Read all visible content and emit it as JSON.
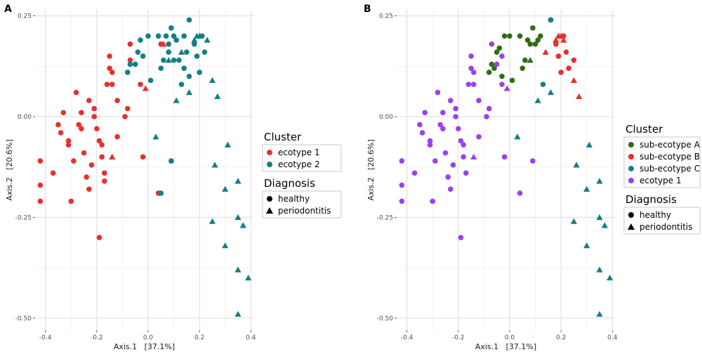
{
  "colors": {
    "ecotype1": "#e8302a",
    "ecotype2": "#128083",
    "subA": "#2f6e10",
    "subB": "#e8302a",
    "subC": "#128083",
    "purple": "#9d3ff0"
  },
  "chart_data": [
    {
      "panel": "A",
      "type": "scatter",
      "xlabel": "Axis.1   [37.1%]",
      "ylabel": "Axis.2   [20.6%]",
      "xlim": [
        -0.44,
        0.41
      ],
      "ylim": [
        -0.53,
        0.265
      ],
      "xticks": [
        -0.4,
        -0.2,
        0.0,
        0.2,
        0.4
      ],
      "xtick_labels": [
        "-0.4",
        "-0.2",
        "0.0",
        "0.2",
        "0.4"
      ],
      "yticks": [
        -0.5,
        -0.25,
        0.0,
        0.25
      ],
      "ytick_labels": [
        "-0.50",
        "-0.25",
        "0.00",
        "0.25"
      ],
      "legend": {
        "cluster_title": "Cluster",
        "clusters": [
          {
            "label": "ecotype 1",
            "color": "#e8302a"
          },
          {
            "label": "ecotype 2",
            "color": "#128083"
          }
        ],
        "diagnosis_title": "Diagnosis",
        "diagnoses": [
          {
            "label": "healthy",
            "shape": "circle"
          },
          {
            "label": "periodontitis",
            "shape": "triangle"
          }
        ]
      },
      "series": [
        {
          "name": "ecotype 1",
          "color": "#e8302a",
          "healthy": [
            [
              -0.42,
              -0.11
            ],
            [
              -0.42,
              -0.17
            ],
            [
              -0.42,
              -0.21
            ],
            [
              -0.37,
              -0.14
            ],
            [
              -0.35,
              -0.02
            ],
            [
              -0.34,
              -0.04
            ],
            [
              -0.33,
              0.01
            ],
            [
              -0.31,
              -0.06
            ],
            [
              -0.31,
              -0.07
            ],
            [
              -0.3,
              -0.21
            ],
            [
              -0.29,
              -0.11
            ],
            [
              -0.28,
              0.06
            ],
            [
              -0.27,
              -0.02
            ],
            [
              -0.26,
              0.01
            ],
            [
              -0.26,
              -0.03
            ],
            [
              -0.25,
              -0.09
            ],
            [
              -0.24,
              -0.15
            ],
            [
              -0.23,
              0.04
            ],
            [
              -0.23,
              -0.18
            ],
            [
              -0.22,
              -0.12
            ],
            [
              -0.21,
              0.0
            ],
            [
              -0.21,
              0.02
            ],
            [
              -0.2,
              -0.03
            ],
            [
              -0.19,
              -0.06
            ],
            [
              -0.19,
              -0.3
            ],
            [
              -0.18,
              -0.07
            ],
            [
              -0.18,
              -0.1
            ],
            [
              -0.17,
              -0.14
            ],
            [
              -0.17,
              -0.16
            ],
            [
              -0.16,
              0.08
            ],
            [
              -0.15,
              0.15
            ],
            [
              -0.15,
              0.12
            ],
            [
              -0.14,
              0.11
            ],
            [
              -0.14,
              0.08
            ],
            [
              -0.12,
              0.04
            ],
            [
              -0.12,
              -0.05
            ],
            [
              -0.09,
              0.0
            ],
            [
              -0.08,
              0.02
            ],
            [
              -0.07,
              0.18
            ],
            [
              -0.07,
              0.14
            ],
            [
              -0.03,
              0.08
            ],
            [
              -0.02,
              -0.1
            ],
            [
              0.04,
              -0.19
            ],
            [
              0.05,
              0.18
            ],
            [
              0.09,
              -0.11
            ]
          ],
          "periodontitis": [
            [
              -0.14,
              -0.1
            ],
            [
              -0.01,
              0.07
            ],
            [
              0.06,
              0.18
            ]
          ]
        },
        {
          "name": "ecotype 2",
          "color": "#128083",
          "healthy": [
            [
              -0.08,
              0.11
            ],
            [
              -0.07,
              0.13
            ],
            [
              -0.05,
              0.13
            ],
            [
              -0.04,
              0.16
            ],
            [
              -0.03,
              0.19
            ],
            [
              -0.02,
              0.15
            ],
            [
              0.0,
              0.2
            ],
            [
              0.01,
              0.09
            ],
            [
              0.04,
              0.2
            ],
            [
              0.05,
              0.12
            ],
            [
              0.06,
              0.14
            ],
            [
              0.07,
              0.2
            ],
            [
              0.08,
              0.16
            ],
            [
              0.08,
              0.18
            ],
            [
              0.09,
              0.22
            ],
            [
              0.1,
              0.2
            ],
            [
              0.1,
              0.14
            ],
            [
              0.11,
              0.19
            ],
            [
              0.12,
              0.14
            ],
            [
              0.13,
              0.08
            ],
            [
              0.14,
              0.12
            ],
            [
              0.14,
              0.2
            ],
            [
              0.15,
              0.16
            ],
            [
              0.16,
              0.1
            ],
            [
              0.16,
              0.24
            ],
            [
              0.18,
              0.18
            ],
            [
              0.19,
              0.15
            ],
            [
              0.2,
              0.11
            ],
            [
              0.21,
              0.2
            ],
            [
              0.22,
              0.16
            ],
            [
              0.09,
              -0.11
            ],
            [
              0.05,
              -0.19
            ]
          ],
          "periodontitis": [
            [
              0.08,
              0.14
            ],
            [
              0.03,
              -0.05
            ],
            [
              0.13,
              0.16
            ],
            [
              0.11,
              0.04
            ],
            [
              0.16,
              0.06
            ],
            [
              0.18,
              0.19
            ],
            [
              0.19,
              0.2
            ],
            [
              0.2,
              0.2
            ],
            [
              0.23,
              0.19
            ],
            [
              0.25,
              0.09
            ],
            [
              0.27,
              0.05
            ],
            [
              0.26,
              -0.12
            ],
            [
              0.25,
              -0.26
            ],
            [
              0.31,
              -0.07
            ],
            [
              0.3,
              -0.18
            ],
            [
              0.3,
              -0.32
            ],
            [
              0.35,
              -0.16
            ],
            [
              0.35,
              -0.25
            ],
            [
              0.37,
              -0.27
            ],
            [
              0.35,
              -0.38
            ],
            [
              0.39,
              -0.4
            ],
            [
              0.35,
              -0.49
            ]
          ]
        }
      ]
    },
    {
      "panel": "B",
      "type": "scatter",
      "xlabel": "Axis.1   [37.1%]",
      "ylabel": "Axis.2   [20.6%]",
      "xlim": [
        -0.44,
        0.41
      ],
      "ylim": [
        -0.53,
        0.265
      ],
      "xticks": [
        -0.4,
        -0.2,
        0.0,
        0.2,
        0.4
      ],
      "xtick_labels": [
        "-0.4",
        "-0.2",
        "0.0",
        "0.2",
        "0.4"
      ],
      "yticks": [
        -0.5,
        -0.25,
        0.0,
        0.25
      ],
      "ytick_labels": [
        "-0.50",
        "-0.25",
        "0.00",
        "0.25"
      ],
      "legend": {
        "cluster_title": "Cluster",
        "clusters": [
          {
            "label": "sub-ecotype A",
            "color": "#2f6e10"
          },
          {
            "label": "sub-ecotype B",
            "color": "#e8302a"
          },
          {
            "label": "sub-ecotype C",
            "color": "#128083"
          },
          {
            "label": "ecotype 1",
            "color": "#9d3ff0"
          }
        ],
        "diagnosis_title": "Diagnosis",
        "diagnoses": [
          {
            "label": "healthy",
            "shape": "circle"
          },
          {
            "label": "periodontitis",
            "shape": "triangle"
          }
        ]
      },
      "series": [
        {
          "name": "sub-ecotype A",
          "color": "#2f6e10",
          "healthy": [
            [
              -0.08,
              0.11
            ],
            [
              -0.07,
              0.13
            ],
            [
              -0.06,
              0.12
            ],
            [
              -0.05,
              0.16
            ],
            [
              -0.04,
              0.17
            ],
            [
              -0.03,
              0.1
            ],
            [
              -0.02,
              0.2
            ],
            [
              0.0,
              0.2
            ],
            [
              0.01,
              0.09
            ],
            [
              0.04,
              0.2
            ],
            [
              0.05,
              0.12
            ],
            [
              0.06,
              0.14
            ],
            [
              0.07,
              0.19
            ],
            [
              0.08,
              0.18
            ],
            [
              0.09,
              0.22
            ],
            [
              0.1,
              0.18
            ],
            [
              0.11,
              0.19
            ],
            [
              0.12,
              0.2
            ]
          ],
          "periodontitis": [
            [
              0.08,
              0.14
            ]
          ]
        },
        {
          "name": "sub-ecotype B",
          "color": "#e8302a",
          "healthy": [
            [
              0.16,
              0.24
            ],
            [
              0.18,
              0.18
            ],
            [
              0.19,
              0.15
            ],
            [
              0.2,
              0.11
            ],
            [
              0.21,
              0.2
            ],
            [
              0.22,
              0.16
            ],
            [
              0.23,
              0.12
            ],
            [
              0.25,
              0.14
            ]
          ],
          "periodontitis": [
            [
              0.14,
              0.16
            ],
            [
              0.18,
              0.19
            ],
            [
              0.19,
              0.2
            ],
            [
              0.2,
              0.2
            ],
            [
              0.21,
              0.19
            ],
            [
              0.25,
              0.09
            ],
            [
              0.27,
              0.05
            ]
          ]
        },
        {
          "name": "sub-ecotype C",
          "color": "#128083",
          "healthy": [
            [
              0.13,
              0.08
            ],
            [
              0.16,
              0.24
            ]
          ],
          "periodontitis": [
            [
              0.11,
              0.04
            ],
            [
              0.16,
              0.06
            ],
            [
              0.03,
              -0.05
            ],
            [
              0.26,
              -0.12
            ],
            [
              0.25,
              -0.26
            ],
            [
              0.31,
              -0.07
            ],
            [
              0.3,
              -0.18
            ],
            [
              0.3,
              -0.32
            ],
            [
              0.35,
              -0.16
            ],
            [
              0.35,
              -0.25
            ],
            [
              0.37,
              -0.27
            ],
            [
              0.35,
              -0.38
            ],
            [
              0.39,
              -0.4
            ],
            [
              0.35,
              -0.49
            ]
          ]
        },
        {
          "name": "ecotype 1",
          "color": "#9d3ff0",
          "healthy": [
            [
              -0.42,
              -0.11
            ],
            [
              -0.42,
              -0.17
            ],
            [
              -0.42,
              -0.21
            ],
            [
              -0.37,
              -0.14
            ],
            [
              -0.35,
              -0.02
            ],
            [
              -0.34,
              -0.04
            ],
            [
              -0.33,
              0.01
            ],
            [
              -0.31,
              -0.06
            ],
            [
              -0.31,
              -0.07
            ],
            [
              -0.3,
              -0.21
            ],
            [
              -0.29,
              -0.11
            ],
            [
              -0.28,
              0.06
            ],
            [
              -0.27,
              -0.02
            ],
            [
              -0.26,
              0.01
            ],
            [
              -0.26,
              -0.03
            ],
            [
              -0.25,
              -0.09
            ],
            [
              -0.24,
              -0.15
            ],
            [
              -0.23,
              0.04
            ],
            [
              -0.23,
              -0.18
            ],
            [
              -0.22,
              -0.12
            ],
            [
              -0.21,
              0.0
            ],
            [
              -0.21,
              0.02
            ],
            [
              -0.2,
              -0.03
            ],
            [
              -0.19,
              -0.06
            ],
            [
              -0.19,
              -0.3
            ],
            [
              -0.18,
              -0.07
            ],
            [
              -0.18,
              -0.1
            ],
            [
              -0.17,
              -0.14
            ],
            [
              -0.16,
              0.08
            ],
            [
              -0.15,
              0.15
            ],
            [
              -0.15,
              0.12
            ],
            [
              -0.14,
              0.11
            ],
            [
              -0.14,
              0.08
            ],
            [
              -0.12,
              0.04
            ],
            [
              -0.12,
              -0.05
            ],
            [
              -0.09,
              0.0
            ],
            [
              -0.08,
              0.02
            ],
            [
              -0.07,
              0.18
            ],
            [
              -0.05,
              0.13
            ],
            [
              -0.03,
              0.08
            ],
            [
              -0.03,
              0.15
            ],
            [
              -0.02,
              -0.1
            ],
            [
              0.04,
              -0.19
            ],
            [
              0.09,
              -0.11
            ]
          ],
          "periodontitis": [
            [
              -0.14,
              -0.1
            ],
            [
              -0.01,
              0.07
            ]
          ]
        }
      ]
    }
  ]
}
